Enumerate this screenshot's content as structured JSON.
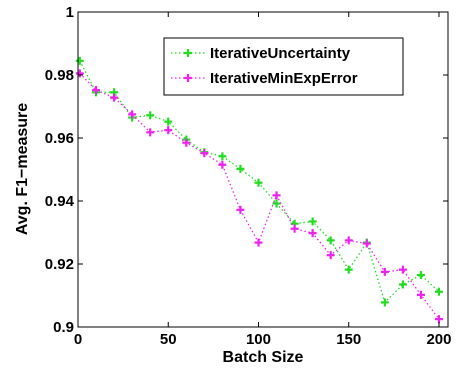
{
  "chart_data": {
    "type": "line",
    "title": "",
    "xlabel": "Batch Size",
    "ylabel": "Avg. F1−measure",
    "xlim": [
      0,
      205
    ],
    "ylim": [
      0.9,
      1.0
    ],
    "x_ticks": [
      0,
      50,
      100,
      150,
      200
    ],
    "x_tick_labels": [
      "0",
      "50",
      "100",
      "150",
      "200"
    ],
    "y_ticks": [
      0.9,
      0.92,
      0.94,
      0.96,
      0.98,
      1.0
    ],
    "y_tick_labels": [
      "0.9",
      "0.92",
      "0.94",
      "0.96",
      "0.98",
      "1"
    ],
    "grid": false,
    "legend_position": "top-right",
    "x": [
      1,
      10,
      20,
      30,
      40,
      50,
      60,
      70,
      80,
      90,
      100,
      110,
      120,
      130,
      140,
      150,
      160,
      170,
      180,
      190,
      200
    ],
    "series": [
      {
        "name": "IterativeUncertainty",
        "color": "#22dd22",
        "marker": "+",
        "line_style": "dotted",
        "values": [
          0.9845,
          0.9745,
          0.9745,
          0.9665,
          0.9672,
          0.9652,
          0.9595,
          0.9555,
          0.9542,
          0.9502,
          0.9458,
          0.9392,
          0.9328,
          0.9335,
          0.9275,
          0.9182,
          0.9268,
          0.9078,
          0.9135,
          0.9165,
          0.9112
        ]
      },
      {
        "name": "IterativeMinExpError",
        "color": "#ee22ee",
        "marker": "+",
        "line_style": "dotted",
        "values": [
          0.9805,
          0.9752,
          0.9728,
          0.9675,
          0.9618,
          0.9625,
          0.9585,
          0.9552,
          0.9515,
          0.9372,
          0.9268,
          0.9418,
          0.9312,
          0.9298,
          0.9228,
          0.9275,
          0.9265,
          0.9175,
          0.9182,
          0.9102,
          0.9025
        ]
      }
    ]
  }
}
